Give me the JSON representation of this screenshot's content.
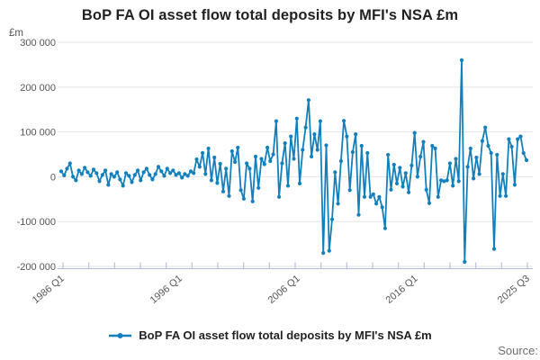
{
  "title": "BoP FA OI asset flow total deposits by MFI's NSA £m",
  "legend": {
    "label": "BoP FA OI asset flow total deposits by MFI's NSA £m"
  },
  "source_label": "Source:",
  "colors": {
    "line": "#1380be",
    "grid": "#e6e6e6",
    "axis": "#b9c0dc",
    "tick_text": "#555555",
    "title_text": "#222222",
    "source_text": "#6e6e6e"
  },
  "chart_data": {
    "type": "line",
    "title": "BoP FA OI asset flow total deposits by MFI's NSA £m",
    "unit_label": "£m",
    "xlabel": "",
    "ylabel": "£m",
    "frequency": "quarterly",
    "x_start": "1986 Q1",
    "x_end": "2025 Q3",
    "ylim": [
      -200000,
      300000
    ],
    "grid": true,
    "legend_position": "bottom",
    "marker": "point",
    "y_ticks": [
      300000,
      200000,
      100000,
      0,
      -100000,
      -200000
    ],
    "y_tick_labels": [
      "300 000",
      "200 000",
      "100 000",
      "0",
      "-100 000",
      "-200 000"
    ],
    "x_tick_labels": [
      {
        "label": "1986 Q1",
        "quarter_index": 0
      },
      {
        "label": "1996 Q1",
        "quarter_index": 40
      },
      {
        "label": "2006 Q1",
        "quarter_index": 80
      },
      {
        "label": "2016 Q1",
        "quarter_index": 120
      },
      {
        "label": "2025 Q3",
        "quarter_index": 158
      }
    ],
    "minor_tick_count": 19,
    "series": [
      {
        "name": "BoP FA OI asset flow total deposits by MFI's NSA £m",
        "color": "#1380be",
        "values": [
          12000,
          3000,
          18000,
          30000,
          0,
          -8000,
          14000,
          6000,
          20000,
          10000,
          2000,
          16000,
          8000,
          -10000,
          4000,
          14000,
          -18000,
          6000,
          0,
          10000,
          -6000,
          -20000,
          8000,
          2000,
          -12000,
          4000,
          14000,
          -8000,
          10000,
          18000,
          4000,
          -6000,
          6000,
          22000,
          12000,
          2000,
          18000,
          8000,
          14000,
          4000,
          8000,
          -2000,
          6000,
          2000,
          12000,
          8000,
          39000,
          22000,
          53000,
          6000,
          63000,
          -8000,
          43000,
          -14000,
          29000,
          -33000,
          18000,
          -43000,
          57000,
          33000,
          65000,
          -30000,
          -49000,
          30000,
          18000,
          -55000,
          45000,
          -25000,
          40000,
          28000,
          65000,
          35000,
          50000,
          124000,
          -45000,
          30000,
          75000,
          -20000,
          90000,
          40000,
          130000,
          -15000,
          60000,
          110000,
          171000,
          45000,
          95000,
          60000,
          124000,
          -170000,
          70000,
          -165000,
          -95000,
          10000,
          -60000,
          35000,
          125000,
          90000,
          -30000,
          55000,
          95000,
          -85000,
          69000,
          -45000,
          53000,
          -45000,
          -39000,
          -60000,
          -45000,
          -68000,
          -115000,
          49000,
          -29000,
          27000,
          -15000,
          20000,
          -22000,
          8000,
          -35000,
          25000,
          98000,
          0,
          45000,
          78000,
          -29000,
          -59000,
          69000,
          63000,
          -45000,
          -8000,
          -10000,
          -8000,
          30000,
          -20000,
          40000,
          -10000,
          260000,
          -190000,
          22000,
          63000,
          -4000,
          43000,
          6000,
          80000,
          110000,
          69000,
          53000,
          -161000,
          49000,
          -43000,
          6000,
          -43000,
          84000,
          67000,
          -18000,
          84000,
          90000,
          53000,
          37000
        ]
      }
    ]
  }
}
